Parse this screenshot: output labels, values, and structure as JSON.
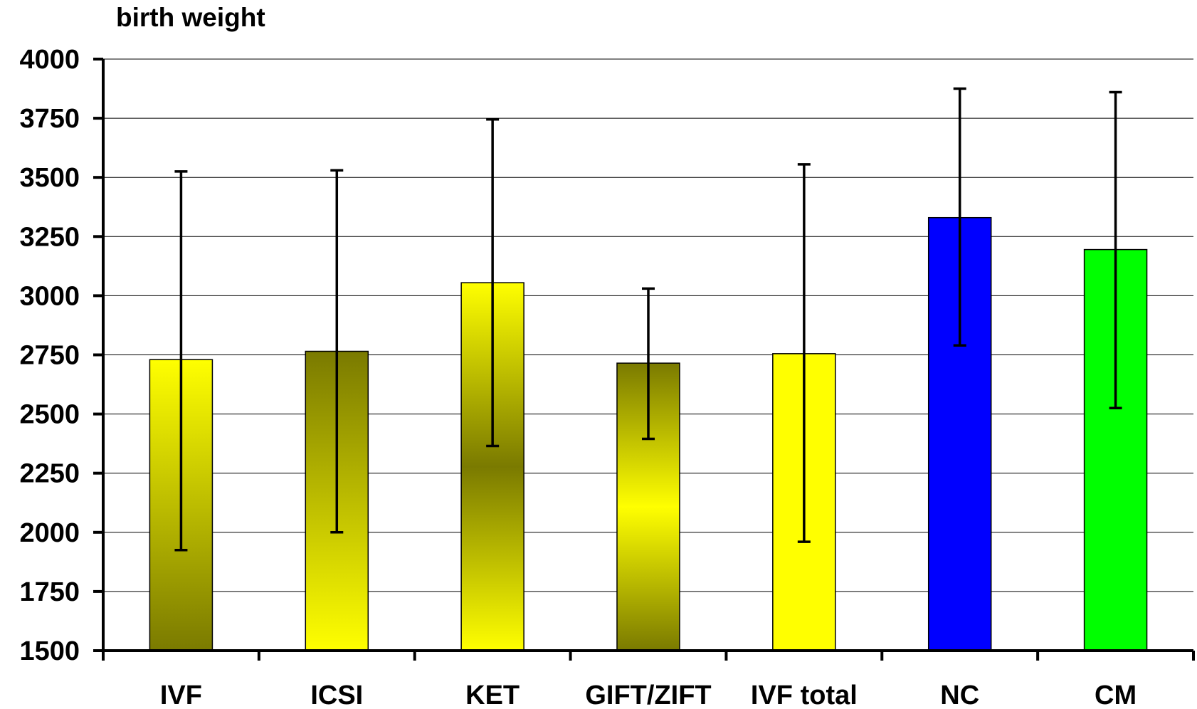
{
  "chart_data": {
    "type": "bar",
    "title": "",
    "ylabel": "birth weight",
    "xlabel": "",
    "ylim": [
      1500,
      4000
    ],
    "yticks": [
      1500,
      1750,
      2000,
      2250,
      2500,
      2750,
      3000,
      3250,
      3500,
      3750,
      4000
    ],
    "grid": true,
    "legend": "none",
    "categories": [
      "IVF",
      "ICSI",
      "KET",
      "GIFT/ZIFT",
      "IVF total",
      "NC",
      "CM"
    ],
    "values": [
      2730,
      2765,
      3055,
      2715,
      2755,
      3330,
      3195
    ],
    "error_low": [
      1925,
      2000,
      2365,
      2395,
      1960,
      2790,
      2525
    ],
    "error_high": [
      3525,
      3530,
      3745,
      3030,
      3555,
      3875,
      3860
    ],
    "bar_styles": [
      {
        "fill": "gradient",
        "colors": [
          "#ffff00",
          "#7a7a00"
        ]
      },
      {
        "fill": "gradient",
        "colors": [
          "#7a7a00",
          "#ffff00"
        ]
      },
      {
        "fill": "gradient",
        "colors": [
          "#ffff00",
          "#7a7a00",
          "#ffff00"
        ]
      },
      {
        "fill": "gradient",
        "colors": [
          "#7a7a00",
          "#ffff00",
          "#7a7a00"
        ]
      },
      {
        "fill": "solid",
        "colors": [
          "#ffff00"
        ]
      },
      {
        "fill": "solid",
        "colors": [
          "#0000ff"
        ]
      },
      {
        "fill": "solid",
        "colors": [
          "#00ff00"
        ]
      }
    ]
  }
}
